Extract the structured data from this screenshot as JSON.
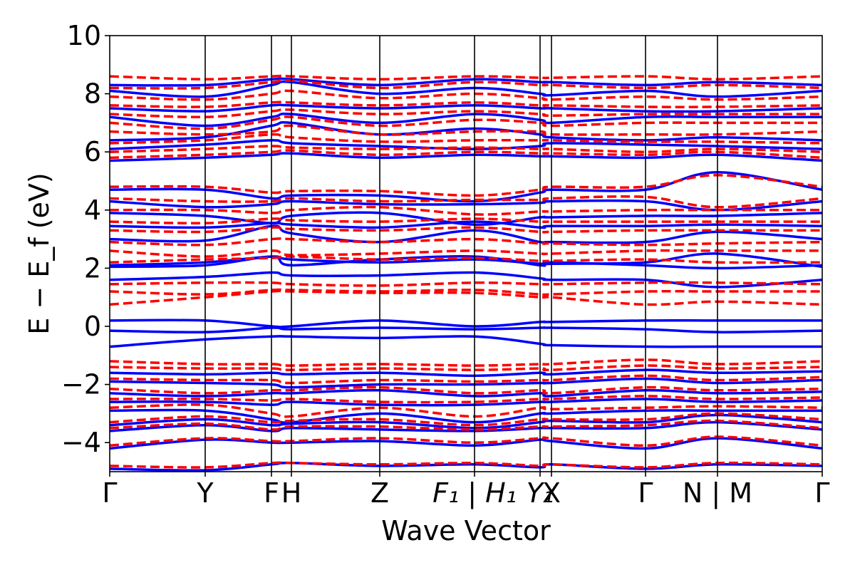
{
  "chart_data": {
    "type": "line",
    "title": "",
    "xlabel": "Wave Vector",
    "ylabel": "E − E_f (eV)",
    "ylim": [
      -5,
      10
    ],
    "yticks": [
      -4,
      -2,
      0,
      2,
      4,
      6,
      8,
      10
    ],
    "ytick_labels": [
      "−4",
      "−2",
      "0",
      "2",
      "4",
      "6",
      "8",
      "10"
    ],
    "grid": false,
    "legend": "none",
    "xrange": [
      0,
      1
    ],
    "kpoints": [
      {
        "x": 0.0,
        "label": "Γ",
        "italic": false
      },
      {
        "x": 0.134,
        "label": "Y",
        "italic": false
      },
      {
        "x": 0.227,
        "label": "F",
        "italic": false
      },
      {
        "x": 0.255,
        "label": "H",
        "italic": false
      },
      {
        "x": 0.379,
        "label": "Z",
        "italic": false
      },
      {
        "x": 0.512,
        "label": "F₁ | H₁",
        "italic": true
      },
      {
        "x": 0.604,
        "label": "Y₁",
        "italic": true
      },
      {
        "x": 0.62,
        "label": "X",
        "italic": false
      },
      {
        "x": 0.752,
        "label": "Γ",
        "italic": false
      },
      {
        "x": 0.853,
        "label": "N | M",
        "italic": false
      },
      {
        "x": 1.0,
        "label": "Γ",
        "italic": false
      }
    ],
    "vlines": [
      0.134,
      0.227,
      0.255,
      0.379,
      0.512,
      0.604,
      0.62,
      0.752,
      0.853
    ],
    "series": [
      {
        "style": "solid",
        "color": "#0000ff",
        "bands": [
          [
            -4.9,
            -4.95,
            -4.75,
            -4.7,
            -4.8,
            -4.75,
            -4.85,
            -4.75,
            -4.9,
            -4.75,
            -4.8
          ],
          [
            -4.2,
            -3.9,
            -4.0,
            -4.0,
            -3.95,
            -4.1,
            -3.9,
            -3.95,
            -4.2,
            -3.85,
            -4.2
          ],
          [
            -3.6,
            -3.4,
            -3.6,
            -3.5,
            -3.55,
            -3.6,
            -3.5,
            -3.5,
            -3.5,
            -3.3,
            -3.55
          ],
          [
            -3.4,
            -3.2,
            -3.4,
            -3.35,
            -3.3,
            -3.5,
            -3.3,
            -3.25,
            -3.3,
            -3.05,
            -3.3
          ],
          [
            -2.9,
            -2.9,
            -3.2,
            -3.3,
            -3.0,
            -3.3,
            -3.0,
            -3.0,
            -2.9,
            -2.9,
            -2.9
          ],
          [
            -2.6,
            -2.6,
            -2.7,
            -2.6,
            -2.7,
            -2.7,
            -2.6,
            -2.6,
            -2.5,
            -2.6,
            -2.55
          ],
          [
            -2.3,
            -2.4,
            -2.3,
            -2.3,
            -2.2,
            -2.4,
            -2.3,
            -2.4,
            -2.2,
            -2.3,
            -2.25
          ],
          [
            -1.9,
            -1.95,
            -2.0,
            -2.1,
            -2.0,
            -2.0,
            -1.95,
            -1.95,
            -1.8,
            -1.95,
            -1.85
          ],
          [
            -1.6,
            -1.65,
            -1.6,
            -1.65,
            -1.6,
            -1.7,
            -1.6,
            -1.65,
            -1.5,
            -1.6,
            -1.55
          ],
          [
            -0.7,
            -0.45,
            -0.35,
            -0.35,
            -0.4,
            -0.35,
            -0.6,
            -0.65,
            -0.7,
            -0.7,
            -0.7
          ],
          [
            -0.15,
            -0.2,
            -0.05,
            -0.1,
            -0.05,
            -0.1,
            -0.05,
            -0.05,
            -0.1,
            -0.2,
            -0.15
          ],
          [
            0.2,
            0.2,
            0.0,
            0.0,
            0.2,
            0.0,
            0.15,
            0.15,
            0.2,
            0.2,
            0.2
          ],
          [
            1.6,
            1.7,
            1.85,
            1.75,
            1.75,
            1.85,
            1.65,
            1.6,
            1.6,
            1.35,
            1.6
          ],
          [
            2.05,
            2.1,
            2.4,
            2.1,
            2.3,
            2.4,
            2.1,
            2.15,
            2.2,
            2.5,
            2.05
          ],
          [
            2.1,
            2.2,
            2.4,
            2.3,
            2.2,
            2.3,
            2.15,
            2.2,
            2.1,
            2.0,
            2.1
          ],
          [
            3.0,
            2.95,
            3.45,
            3.2,
            2.9,
            3.3,
            2.9,
            2.9,
            2.9,
            3.25,
            3.0
          ],
          [
            3.45,
            3.4,
            3.55,
            3.5,
            3.4,
            3.6,
            3.4,
            3.45,
            3.45,
            3.5,
            3.45
          ],
          [
            3.9,
            3.8,
            3.55,
            3.8,
            3.9,
            3.5,
            3.75,
            3.75,
            3.8,
            3.8,
            3.9
          ],
          [
            4.3,
            4.1,
            4.2,
            4.3,
            4.2,
            4.2,
            4.25,
            4.3,
            4.3,
            4.0,
            4.3
          ],
          [
            4.7,
            4.7,
            4.4,
            4.5,
            4.5,
            4.3,
            4.6,
            4.7,
            4.7,
            5.3,
            4.7
          ],
          [
            5.7,
            5.8,
            5.9,
            5.95,
            5.8,
            5.9,
            5.85,
            5.85,
            5.8,
            5.9,
            5.7
          ],
          [
            6.1,
            6.25,
            6.4,
            6.3,
            6.2,
            6.1,
            6.2,
            6.3,
            6.25,
            6.2,
            6.1
          ],
          [
            6.4,
            6.5,
            6.9,
            7.0,
            6.6,
            6.8,
            6.6,
            6.5,
            6.4,
            6.5,
            6.4
          ],
          [
            7.2,
            6.9,
            7.2,
            7.3,
            7.0,
            7.3,
            7.1,
            7.0,
            7.2,
            7.2,
            7.2
          ],
          [
            7.5,
            7.4,
            7.6,
            7.6,
            7.5,
            7.6,
            7.5,
            7.5,
            7.4,
            7.4,
            7.5
          ],
          [
            8.1,
            7.9,
            8.3,
            8.4,
            8.0,
            8.2,
            8.0,
            7.95,
            8.1,
            7.9,
            8.1
          ],
          [
            8.3,
            8.3,
            8.5,
            8.5,
            8.3,
            8.5,
            8.4,
            8.4,
            8.3,
            8.4,
            8.3
          ]
        ]
      },
      {
        "style": "dashed",
        "color": "#ff0000",
        "bands": [
          [
            -4.8,
            -4.85,
            -4.7,
            -4.7,
            -4.75,
            -4.7,
            -4.8,
            -4.75,
            -4.85,
            -4.7,
            -4.75
          ],
          [
            -4.1,
            -3.85,
            -3.95,
            -3.95,
            -3.85,
            -4.0,
            -3.85,
            -3.85,
            -4.1,
            -3.8,
            -4.1
          ],
          [
            -3.5,
            -3.35,
            -3.55,
            -3.45,
            -3.45,
            -3.55,
            -3.45,
            -3.45,
            -3.4,
            -3.25,
            -3.5
          ],
          [
            -3.3,
            -3.1,
            -3.3,
            -3.25,
            -3.2,
            -3.4,
            -3.2,
            -3.2,
            -3.2,
            -3.0,
            -3.2
          ],
          [
            -2.8,
            -2.7,
            -3.0,
            -3.1,
            -2.8,
            -3.1,
            -2.8,
            -2.85,
            -2.8,
            -2.75,
            -2.8
          ],
          [
            -2.5,
            -2.5,
            -2.55,
            -2.5,
            -2.6,
            -2.6,
            -2.5,
            -2.5,
            -2.4,
            -2.5,
            -2.45
          ],
          [
            -2.15,
            -2.3,
            -2.2,
            -2.2,
            -2.1,
            -2.3,
            -2.2,
            -2.3,
            -2.1,
            -2.2,
            -2.15
          ],
          [
            -1.8,
            -1.85,
            -1.85,
            -1.95,
            -1.85,
            -1.9,
            -1.85,
            -1.85,
            -1.7,
            -1.85,
            -1.75
          ],
          [
            -1.4,
            -1.45,
            -1.45,
            -1.5,
            -1.45,
            -1.5,
            -1.45,
            -1.5,
            -1.35,
            -1.45,
            -1.4
          ],
          [
            -1.2,
            -1.3,
            -1.3,
            -1.35,
            -1.3,
            -1.35,
            -1.3,
            -1.3,
            -1.15,
            -1.3,
            -1.2
          ],
          [
            0.75,
            1.0,
            1.2,
            1.2,
            1.15,
            1.15,
            1.0,
            1.0,
            0.75,
            0.85,
            0.75
          ],
          [
            1.2,
            1.1,
            1.25,
            1.25,
            1.2,
            1.25,
            1.1,
            1.1,
            1.2,
            1.2,
            1.2
          ],
          [
            1.45,
            1.5,
            1.5,
            1.45,
            1.4,
            1.5,
            1.45,
            1.45,
            1.5,
            1.5,
            1.45
          ],
          [
            2.2,
            2.3,
            2.35,
            2.4,
            2.3,
            2.35,
            2.25,
            2.25,
            2.3,
            2.2,
            2.2
          ],
          [
            2.6,
            2.4,
            2.6,
            2.45,
            2.5,
            2.6,
            2.5,
            2.5,
            2.6,
            2.6,
            2.6
          ],
          [
            2.9,
            2.8,
            3.0,
            3.0,
            2.9,
            3.0,
            2.85,
            2.85,
            2.8,
            2.85,
            2.9
          ],
          [
            3.3,
            3.25,
            3.4,
            3.35,
            3.3,
            3.4,
            3.25,
            3.25,
            3.3,
            3.3,
            3.3
          ],
          [
            3.6,
            3.55,
            3.7,
            3.65,
            3.6,
            3.7,
            3.6,
            3.6,
            3.6,
            3.6,
            3.6
          ],
          [
            4.0,
            4.0,
            3.9,
            4.0,
            4.1,
            3.85,
            3.95,
            3.95,
            4.0,
            4.0,
            4.0
          ],
          [
            4.4,
            4.3,
            4.3,
            4.4,
            4.3,
            4.35,
            4.35,
            4.4,
            4.45,
            4.1,
            4.4
          ],
          [
            4.8,
            4.8,
            4.6,
            4.65,
            4.65,
            4.5,
            4.7,
            4.8,
            4.8,
            5.2,
            4.8
          ],
          [
            5.8,
            5.9,
            6.0,
            6.05,
            5.9,
            6.0,
            5.95,
            5.95,
            5.9,
            6.0,
            5.8
          ],
          [
            6.0,
            6.1,
            6.2,
            6.15,
            6.1,
            6.15,
            6.1,
            6.1,
            6.0,
            6.1,
            6.0
          ],
          [
            6.3,
            6.4,
            6.6,
            6.5,
            6.35,
            6.4,
            6.4,
            6.4,
            6.35,
            6.35,
            6.3
          ],
          [
            6.7,
            6.6,
            6.7,
            6.9,
            6.6,
            6.7,
            6.7,
            6.6,
            6.6,
            6.6,
            6.7
          ],
          [
            7.0,
            6.8,
            7.1,
            7.2,
            6.9,
            7.1,
            7.0,
            6.9,
            7.0,
            7.0,
            7.0
          ],
          [
            7.3,
            7.2,
            7.4,
            7.45,
            7.3,
            7.4,
            7.3,
            7.25,
            7.3,
            7.3,
            7.3
          ],
          [
            7.6,
            7.55,
            7.7,
            7.7,
            7.6,
            7.7,
            7.6,
            7.6,
            7.55,
            7.55,
            7.6
          ],
          [
            7.9,
            7.8,
            8.0,
            8.1,
            7.85,
            8.0,
            7.85,
            7.8,
            7.9,
            7.8,
            7.9
          ],
          [
            8.2,
            8.2,
            8.4,
            8.45,
            8.2,
            8.4,
            8.3,
            8.3,
            8.2,
            8.3,
            8.2
          ],
          [
            8.6,
            8.5,
            8.6,
            8.6,
            8.5,
            8.6,
            8.55,
            8.55,
            8.6,
            8.5,
            8.6
          ]
        ]
      }
    ]
  }
}
